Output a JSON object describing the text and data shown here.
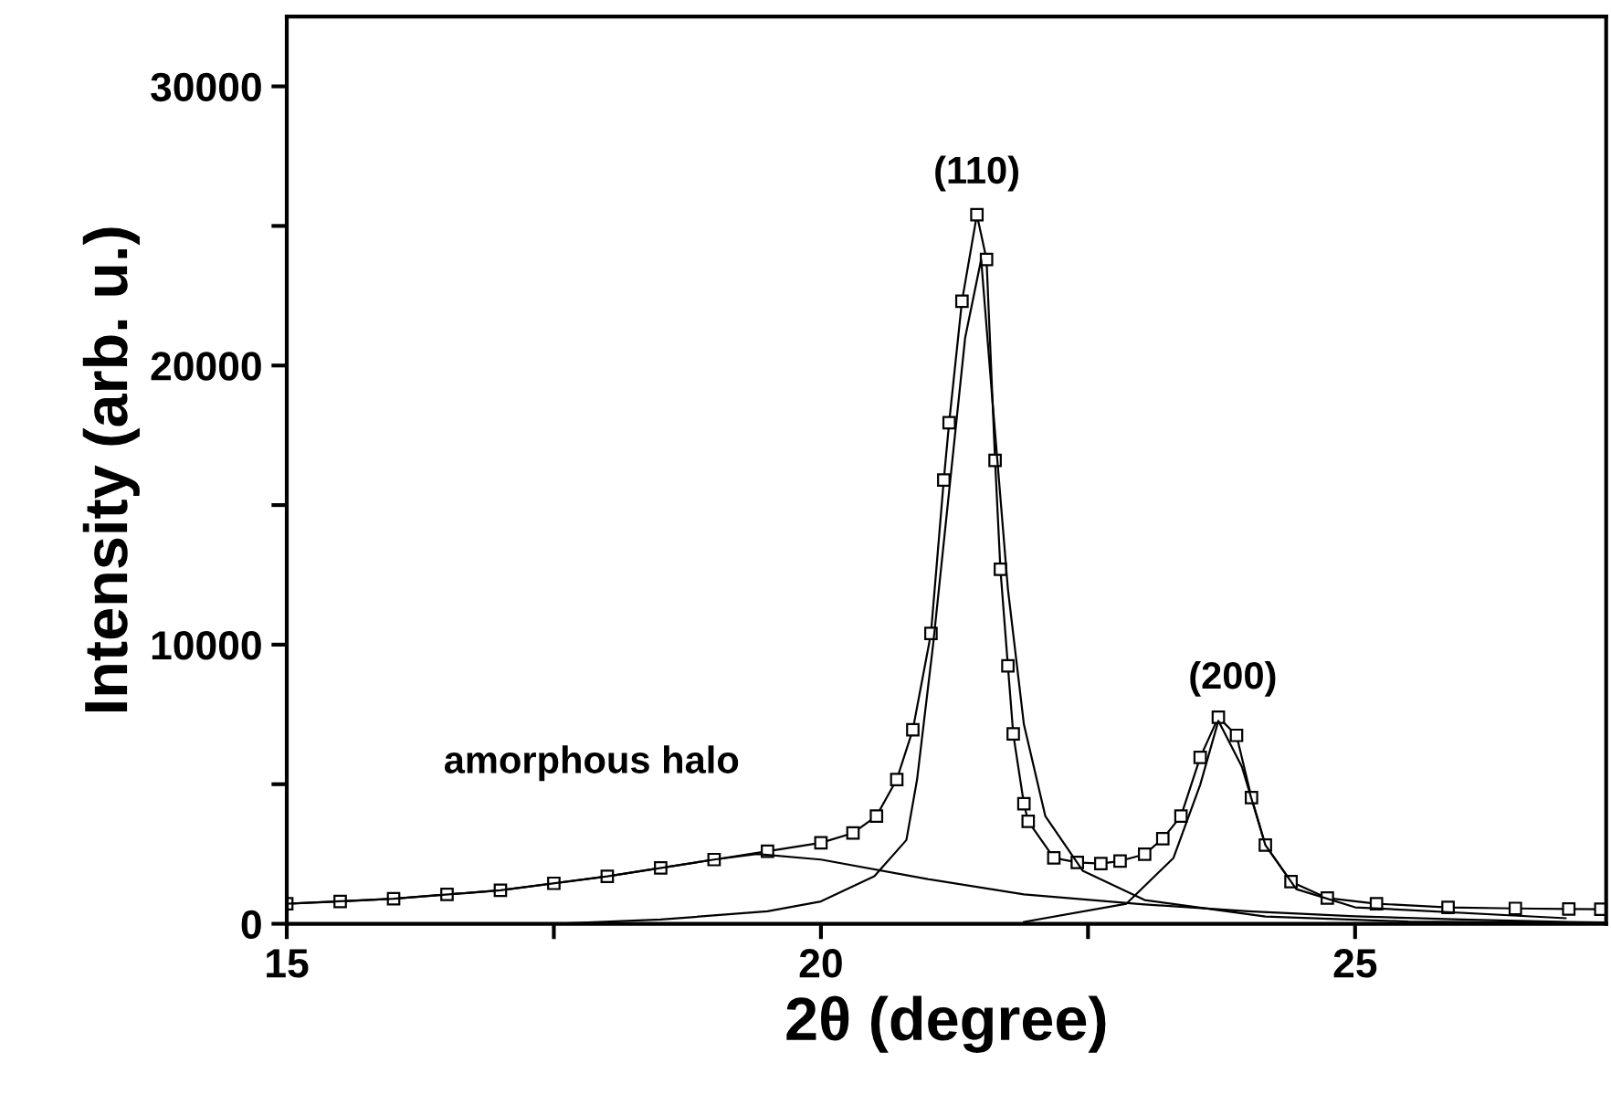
{
  "chart_data": {
    "type": "line",
    "xlabel": "2θ (degree)",
    "ylabel": "Intensity (arb. u.)",
    "xlim": [
      15,
      27.35
    ],
    "ylim": [
      0,
      32500
    ],
    "xticks": [
      15,
      {
        "value": 17.5,
        "label": null
      },
      20,
      {
        "value": 22.5,
        "label": null
      },
      25
    ],
    "yticks": [
      0,
      {
        "value": 5000,
        "label": null
      },
      10000,
      {
        "value": 15000,
        "label": null
      },
      20000,
      {
        "value": 25000,
        "label": null
      },
      30000
    ],
    "grid": false,
    "legend": false,
    "series": [
      {
        "color": "#000000",
        "marker": "square",
        "x": [
          15,
          15.5,
          16,
          16.5,
          17,
          17.5,
          18,
          18.5,
          19,
          19.5,
          20,
          20.3,
          20.52,
          20.71,
          20.86,
          21.03,
          21.15,
          21.2,
          21.32,
          21.46,
          21.55,
          21.63,
          21.68,
          21.75,
          21.8,
          21.9,
          21.94,
          22.18,
          22.4,
          22.62,
          22.8,
          23.03,
          23.2,
          23.37,
          23.55,
          23.72,
          23.89,
          24.03,
          24.16,
          24.4,
          24.74,
          25.2,
          25.87,
          26.5,
          27.0,
          27.3
        ],
        "values": [
          720,
          800,
          900,
          1050,
          1200,
          1450,
          1700,
          2000,
          2300,
          2600,
          2900,
          3250,
          3860,
          5170,
          6950,
          10400,
          15900,
          17950,
          22300,
          25400,
          23800,
          16600,
          12700,
          9240,
          6800,
          4300,
          3670,
          2360,
          2200,
          2160,
          2250,
          2490,
          3050,
          3860,
          5960,
          7400,
          6750,
          4520,
          2820,
          1510,
          920,
          720,
          590,
          550,
          530,
          520
        ]
      },
      {
        "color": "#000000",
        "marker": "none",
        "x": [
          15,
          16,
          17,
          18,
          19,
          19.4,
          20,
          21,
          21.9,
          23,
          24,
          25,
          26,
          27,
          27.35
        ],
        "values": [
          720,
          900,
          1200,
          1700,
          2300,
          2500,
          2300,
          1600,
          1050,
          700,
          450,
          270,
          150,
          65,
          50
        ]
      },
      {
        "color": "#000000",
        "marker": "none",
        "x": [
          17.5,
          18.5,
          19.5,
          20,
          20.5,
          20.8,
          20.9,
          21.05,
          21.2,
          21.35,
          21.5,
          21.6,
          21.75,
          21.9,
          22.1,
          22.45,
          23.03,
          24.16,
          25.5,
          27.3
        ],
        "values": [
          0,
          150,
          450,
          800,
          1700,
          3000,
          5170,
          10000,
          15500,
          21000,
          23800,
          19000,
          12000,
          7140,
          3860,
          1900,
          850,
          260,
          80,
          20
        ]
      },
      {
        "color": "#000000",
        "marker": "none",
        "x": [
          21.9,
          22.86,
          23.3,
          23.55,
          23.72,
          23.94,
          24.16,
          24.45,
          25.0,
          26.97
        ],
        "values": [
          65,
          720,
          2360,
          4980,
          7270,
          5630,
          2820,
          1240,
          590,
          200
        ]
      }
    ],
    "annotations": [
      "(110)",
      "(200)",
      "amorphous halo"
    ]
  }
}
